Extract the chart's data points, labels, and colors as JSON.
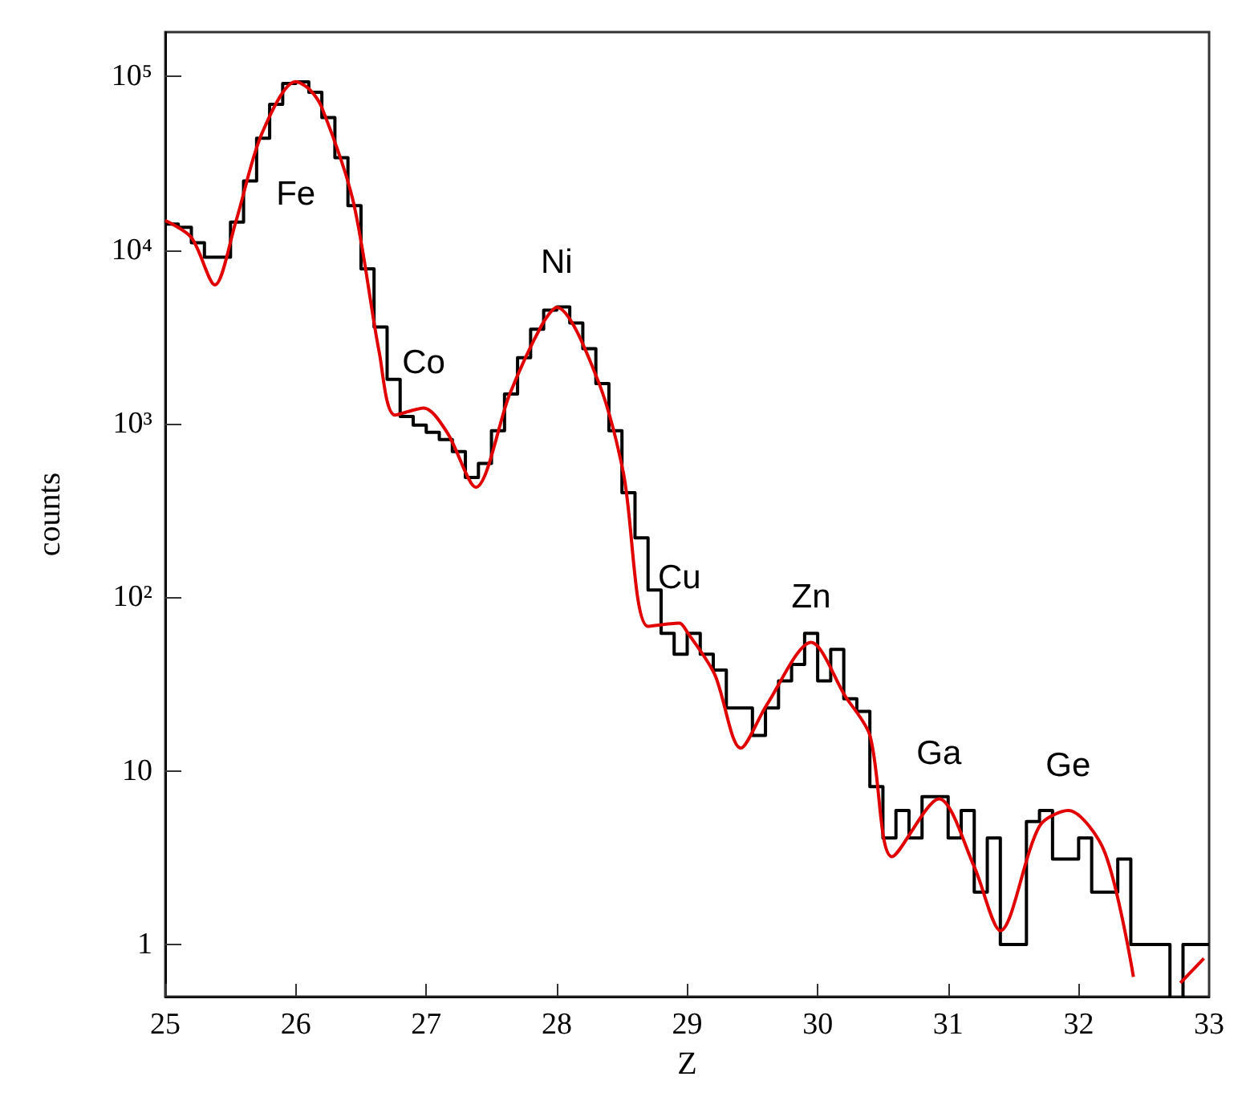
{
  "chart_data": {
    "type": "step",
    "xlabel": "Z",
    "ylabel": "counts",
    "log": "y",
    "xlim": [
      25,
      33
    ],
    "xticks": [
      25,
      26,
      27,
      28,
      29,
      30,
      31,
      32,
      33
    ],
    "ylim": [
      0.5,
      180000
    ],
    "yticks": [
      1,
      10,
      {
        "value": 100,
        "label": "10²"
      },
      {
        "value": 1000,
        "label": "10³"
      },
      {
        "value": 10000,
        "label": "10⁴"
      },
      {
        "value": 100000,
        "label": "10⁵"
      }
    ],
    "annotations": [
      "Fe",
      "Co",
      "Ni",
      "Cu",
      "Zn",
      "Ga",
      "Ge"
    ],
    "series": [
      {
        "color": "#000000",
        "x": [
          25.0,
          25.1,
          25.2,
          25.3,
          25.4,
          25.5,
          25.6,
          25.7,
          25.8,
          25.9,
          26.0,
          26.1,
          26.2,
          26.3,
          26.4,
          26.5,
          26.6,
          26.7,
          26.8,
          26.9,
          27.0,
          27.1,
          27.2,
          27.3,
          27.4,
          27.5,
          27.6,
          27.7,
          27.8,
          27.9,
          28.0,
          28.1,
          28.2,
          28.3,
          28.4,
          28.5,
          28.6,
          28.7,
          28.8,
          28.9,
          29.0,
          29.1,
          29.2,
          29.3,
          29.4,
          29.5,
          29.6,
          29.7,
          29.8,
          29.9,
          30.0,
          30.1,
          30.2,
          30.3,
          30.4,
          30.5,
          30.6,
          30.7,
          30.8,
          30.9,
          31.0,
          31.1,
          31.2,
          31.3,
          31.4,
          31.5,
          31.6,
          31.7,
          31.8,
          31.9,
          32.0,
          32.1,
          32.2,
          32.3,
          32.4,
          32.5,
          32.6,
          32.7,
          32.8,
          32.9,
          33.0
        ],
        "values": [
          14100,
          13500,
          11000,
          9100,
          9100,
          14500,
          25000,
          44000,
          69000,
          91000,
          93000,
          81000,
          58000,
          34000,
          18000,
          7800,
          3600,
          1800,
          1100,
          980,
          890,
          810,
          690,
          490,
          590,
          910,
          1480,
          2400,
          3500,
          4500,
          4700,
          3800,
          2700,
          1700,
          910,
          400,
          220,
          110,
          62,
          47,
          62,
          47,
          38,
          23,
          23,
          16,
          23,
          33,
          41,
          62,
          33,
          50,
          26,
          22,
          8.1,
          4.1,
          5.9,
          4.1,
          7.1,
          7.1,
          4.1,
          5.9,
          2.0,
          4.1,
          1.0,
          1.0,
          5.1,
          5.9,
          3.1,
          3.1,
          4.1,
          2.0,
          2.0,
          3.1,
          1.0,
          1.0,
          1.0,
          null,
          1.0,
          1.0,
          1.0
        ]
      },
      {
        "type": "line",
        "color": "#e00000",
        "x": [
          25.0,
          25.2,
          25.38,
          25.54,
          25.74,
          26.0,
          26.1,
          26.2,
          26.44,
          26.64,
          26.76,
          26.98,
          27.16,
          27.38,
          27.64,
          27.88,
          28.0,
          28.31,
          28.51,
          28.7,
          28.94,
          29.0,
          29.21,
          29.41,
          29.61,
          29.95,
          30.21,
          30.4,
          30.57,
          30.93,
          31.2,
          31.4,
          31.7,
          31.92,
          32.2,
          32.42,
          32.58,
          32.78,
          32.96
        ],
        "values": [
          14800,
          11800,
          6300,
          14500,
          46800,
          93300,
          85000,
          66100,
          19100,
          2570,
          1120,
          1230,
          890,
          430,
          1480,
          3630,
          4680,
          1820,
          525,
          68,
          71,
          63,
          36,
          13.5,
          24,
          55,
          27,
          16,
          3.2,
          6.9,
          2.8,
          1.2,
          4.8,
          5.9,
          3.4,
          0.65,
          null,
          0.6,
          0.83
        ]
      }
    ]
  }
}
